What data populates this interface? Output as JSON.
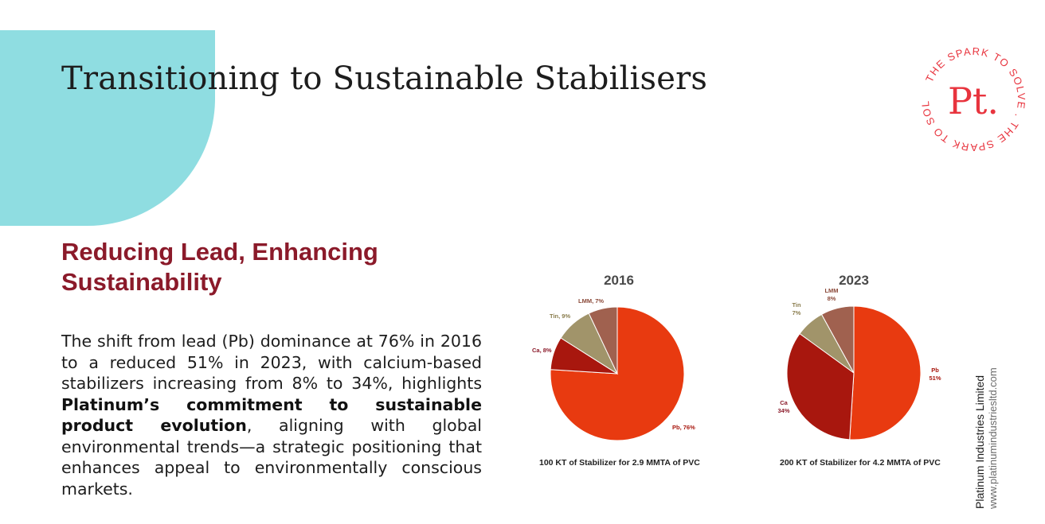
{
  "title": "Transitioning to Sustainable Stabilisers",
  "subtitle": "Reducing Lead, Enhancing Sustainability",
  "body": {
    "part1": "The shift from lead (Pb) dominance at 76% in 2016 to a reduced 51% in 2023, with calcium-based stabilizers increasing from 8% to 34%, highlights ",
    "bold": "Platinum’s commitment to sustainable product evolution",
    "part2": ", aligning with global environmental trends—a strategic positioning that enhances appeal to environmentally conscious markets."
  },
  "logo": {
    "mark": "Pt.",
    "ring_text": "THE SPARK TO SOLVE . THE SPARK TO SOLVE . ",
    "color": "#e8343e"
  },
  "footer": {
    "company": "Platinum Industries Limited",
    "url": "www.platinumindustriesltd.com"
  },
  "colors": {
    "Pb": "#e83a10",
    "Ca": "#a8170e",
    "Tin": "#a1946a",
    "LMM": "#a0614f",
    "accent_teal": "#8fdde1",
    "subtitle": "#8b1a2a"
  },
  "chart_data": [
    {
      "type": "pie",
      "title": "2016",
      "caption": "100 KT of Stabilizer for 2.9 MMTA of PVC",
      "slices": [
        {
          "name": "Pb",
          "value": 76,
          "label": "Pb, 76%"
        },
        {
          "name": "Ca",
          "value": 8,
          "label": "Ca, 8%"
        },
        {
          "name": "Tin",
          "value": 9,
          "label": "Tin, 9%"
        },
        {
          "name": "LMM",
          "value": 7,
          "label": "LMM, 7%"
        }
      ]
    },
    {
      "type": "pie",
      "title": "2023",
      "caption": "200 KT of Stabilizer for 4.2 MMTA of PVC",
      "slices": [
        {
          "name": "Pb",
          "value": 51,
          "label": "Pb\n51%"
        },
        {
          "name": "Ca",
          "value": 34,
          "label": "Ca\n34%"
        },
        {
          "name": "Tin",
          "value": 7,
          "label": "Tin\n7%"
        },
        {
          "name": "LMM",
          "value": 8,
          "label": "LMM\n8%"
        }
      ]
    }
  ]
}
